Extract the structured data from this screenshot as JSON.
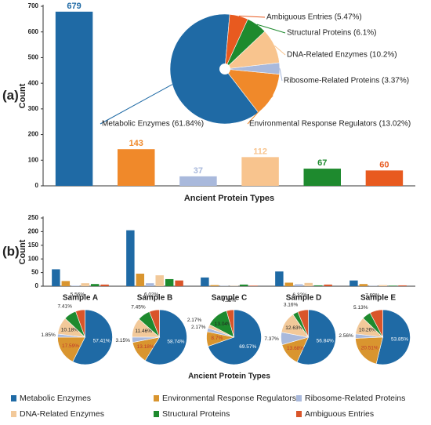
{
  "chart_data": [
    {
      "type": "bar",
      "panel": "(a)",
      "ylabel": "Count",
      "xlabel": "Ancient Protein Types",
      "values": [
        679,
        143,
        37,
        112,
        67,
        60
      ],
      "colors": [
        "#1f6aa5",
        "#f0892a",
        "#a9b9dc",
        "#f8c48e",
        "#1e8a2e",
        "#e85a1f"
      ],
      "ylim": [
        0,
        700
      ],
      "yticks": [
        0,
        100,
        200,
        300,
        400,
        500,
        600,
        700
      ]
    },
    {
      "type": "pie",
      "values": [
        61.84,
        13.02,
        3.37,
        10.2,
        6.1,
        5.47
      ],
      "value_labels": [
        "Metabolic Enzymes (61.84%)",
        "Environmental Response Regulators (13.02%)",
        "Ribosome-Related Proteins (3.37%)",
        "DNA-Related Enzymes (10.2%)",
        "Structural Proteins (6.1%)",
        "Ambiguous Entries (5.47%)"
      ],
      "colors": [
        "#1f6aa5",
        "#f0892a",
        "#a9b9dc",
        "#f8c48e",
        "#1e8a2e",
        "#e85a1f"
      ]
    },
    {
      "type": "grouped_bar",
      "panel": "(b)",
      "ylabel": "Count",
      "xlabel": "Ancient Protein Types",
      "categories": [
        "Sample A",
        "Sample B",
        "Sample C",
        "Sample D",
        "Sample E"
      ],
      "series": [
        {
          "name": "Metabolic Enzymes",
          "color": "#1f6aa5",
          "values": [
            62,
            205,
            32,
            54,
            21
          ]
        },
        {
          "name": "Environmental Response Regulators",
          "color": "#d9952f",
          "values": [
            19,
            46,
            4,
            13,
            8
          ]
        },
        {
          "name": "Ribosome-Related Proteins",
          "color": "#a9b9dc",
          "values": [
            2,
            11,
            1,
            7,
            1
          ]
        },
        {
          "name": "DNA-Related Enzymes",
          "color": "#f2c99a",
          "values": [
            11,
            40,
            1,
            12,
            4
          ]
        },
        {
          "name": "Structural Proteins",
          "color": "#1e8a2e",
          "values": [
            8,
            26,
            6,
            3,
            2
          ]
        },
        {
          "name": "Ambiguous Entries",
          "color": "#d9552a",
          "values": [
            6,
            21,
            2,
            6,
            3
          ]
        }
      ],
      "ylim": [
        0,
        250
      ],
      "yticks": [
        0,
        50,
        100,
        150,
        200,
        250
      ],
      "legend": "bottom"
    },
    {
      "type": "pie",
      "values": [
        57.41,
        17.59,
        1.85,
        10.18,
        7.41,
        5.56
      ],
      "value_labels": [
        "57.41%",
        "17.59%",
        "1.85%",
        "10.18%",
        "7.41%",
        "5.56%"
      ],
      "colors": [
        "#1f6aa5",
        "#d9952f",
        "#a9b9dc",
        "#f2c99a",
        "#1e8a2e",
        "#d9552a"
      ]
    },
    {
      "type": "pie",
      "values": [
        58.74,
        13.18,
        3.15,
        11.46,
        7.45,
        6.02
      ],
      "value_labels": [
        "58.74%",
        "13.18%",
        "3.15%",
        "11.46%",
        "7.45%",
        "6.02%"
      ],
      "colors": [
        "#1f6aa5",
        "#d9952f",
        "#a9b9dc",
        "#f2c99a",
        "#1e8a2e",
        "#d9552a"
      ]
    },
    {
      "type": "pie",
      "values": [
        69.57,
        8.7,
        2.17,
        2.17,
        13.04,
        4.35
      ],
      "value_labels": [
        "69.57%",
        "8.7%",
        "2.17%",
        "2.17%",
        "13.04%",
        "4.35%"
      ],
      "colors": [
        "#1f6aa5",
        "#d9952f",
        "#a9b9dc",
        "#f2c99a",
        "#1e8a2e",
        "#d9552a"
      ]
    },
    {
      "type": "pie",
      "values": [
        56.84,
        13.68,
        7.37,
        12.63,
        3.16,
        6.32
      ],
      "value_labels": [
        "56.84%",
        "13.68%",
        "7.37%",
        "12.63%",
        "3.16%",
        "6.32%"
      ],
      "colors": [
        "#1f6aa5",
        "#d9952f",
        "#a9b9dc",
        "#f2c99a",
        "#1e8a2e",
        "#d9552a"
      ]
    },
    {
      "type": "pie",
      "values": [
        53.85,
        20.51,
        2.56,
        10.26,
        5.13,
        7.69
      ],
      "value_labels": [
        "53.85%",
        "20.51%",
        "2.56%",
        "10.26%",
        "5.13%",
        "7.69%"
      ],
      "colors": [
        "#1f6aa5",
        "#d9952f",
        "#a9b9dc",
        "#f2c99a",
        "#1e8a2e",
        "#d9552a"
      ]
    }
  ]
}
